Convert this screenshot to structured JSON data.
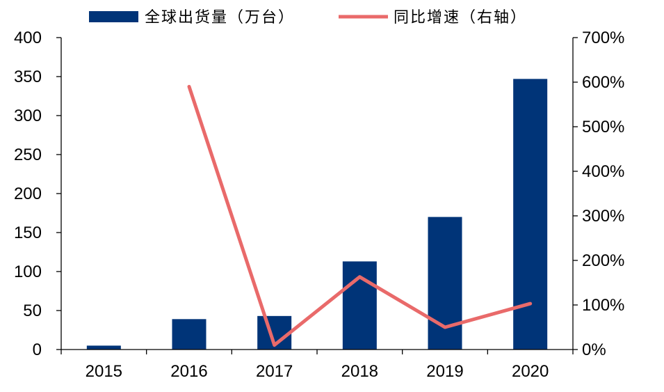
{
  "chart_data": {
    "type": "bar",
    "categories": [
      "2015",
      "2016",
      "2017",
      "2018",
      "2019",
      "2020"
    ],
    "series": [
      {
        "name": "全球出货量（万台）",
        "type": "bar",
        "axis": "left",
        "values": [
          5,
          39,
          43,
          113,
          170,
          347
        ],
        "color": "#003478"
      },
      {
        "name": "同比增速（右轴）",
        "type": "line",
        "axis": "right",
        "values": [
          null,
          590,
          10,
          163,
          50,
          103
        ],
        "color": "#E96A6A"
      }
    ],
    "y_left": {
      "min": 0,
      "max": 400,
      "step": 50,
      "ticks": [
        "0",
        "50",
        "100",
        "150",
        "200",
        "250",
        "300",
        "350",
        "400"
      ]
    },
    "y_right": {
      "min": 0,
      "max": 700,
      "step": 100,
      "ticks": [
        "0%",
        "100%",
        "200%",
        "300%",
        "400%",
        "500%",
        "600%",
        "700%"
      ]
    },
    "grid": false,
    "legend_position": "top"
  }
}
